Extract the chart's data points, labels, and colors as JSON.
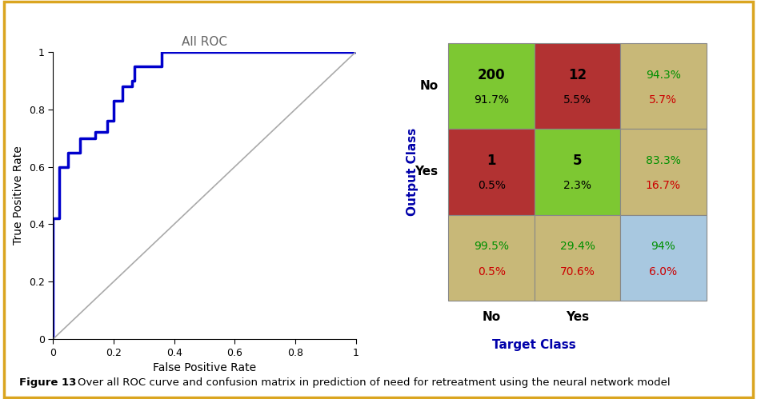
{
  "roc_points": [
    [
      0.0,
      0.0
    ],
    [
      0.0,
      0.3
    ],
    [
      0.0,
      0.42
    ],
    [
      0.02,
      0.42
    ],
    [
      0.02,
      0.5
    ],
    [
      0.02,
      0.6
    ],
    [
      0.05,
      0.6
    ],
    [
      0.05,
      0.65
    ],
    [
      0.09,
      0.65
    ],
    [
      0.09,
      0.7
    ],
    [
      0.14,
      0.7
    ],
    [
      0.14,
      0.72
    ],
    [
      0.18,
      0.72
    ],
    [
      0.18,
      0.76
    ],
    [
      0.2,
      0.76
    ],
    [
      0.2,
      0.83
    ],
    [
      0.23,
      0.83
    ],
    [
      0.23,
      0.88
    ],
    [
      0.26,
      0.88
    ],
    [
      0.26,
      0.9
    ],
    [
      0.27,
      0.9
    ],
    [
      0.27,
      0.95
    ],
    [
      0.36,
      0.95
    ],
    [
      0.36,
      1.0
    ],
    [
      0.5,
      1.0
    ],
    [
      1.0,
      1.0
    ]
  ],
  "roc_color": "#0000CC",
  "diagonal_color": "#AAAAAA",
  "roc_title": "All ROC",
  "xlabel": "False Positive Rate",
  "ylabel": "True Positive Rate",
  "confusion_matrix": {
    "cells": [
      {
        "row": 0,
        "col": 0,
        "bg": "#7DC832",
        "count": "200",
        "pct": "91.7%",
        "count_color": "#000000",
        "pct_color": "#000000"
      },
      {
        "row": 0,
        "col": 1,
        "bg": "#B23232",
        "count": "12",
        "pct": "5.5%",
        "count_color": "#000000",
        "pct_color": "#000000"
      },
      {
        "row": 0,
        "col": 2,
        "bg": "#C8B878",
        "pct_top": "94.3%",
        "pct_bot": "5.7%",
        "pct_top_color": "#009000",
        "pct_bot_color": "#CC0000"
      },
      {
        "row": 1,
        "col": 0,
        "bg": "#B23232",
        "count": "1",
        "pct": "0.5%",
        "count_color": "#000000",
        "pct_color": "#000000"
      },
      {
        "row": 1,
        "col": 1,
        "bg": "#7DC832",
        "count": "5",
        "pct": "2.3%",
        "count_color": "#000000",
        "pct_color": "#000000"
      },
      {
        "row": 1,
        "col": 2,
        "bg": "#C8B878",
        "pct_top": "83.3%",
        "pct_bot": "16.7%",
        "pct_top_color": "#009000",
        "pct_bot_color": "#CC0000"
      },
      {
        "row": 2,
        "col": 0,
        "bg": "#C8B878",
        "pct_top": "99.5%",
        "pct_bot": "0.5%",
        "pct_top_color": "#009000",
        "pct_bot_color": "#CC0000"
      },
      {
        "row": 2,
        "col": 1,
        "bg": "#C8B878",
        "pct_top": "29.4%",
        "pct_bot": "70.6%",
        "pct_top_color": "#009000",
        "pct_bot_color": "#CC0000"
      },
      {
        "row": 2,
        "col": 2,
        "bg": "#A8C8E0",
        "pct_top": "94%",
        "pct_bot": "6.0%",
        "pct_top_color": "#009000",
        "pct_bot_color": "#CC0000"
      }
    ],
    "row_labels": [
      "No",
      "Yes"
    ],
    "col_labels": [
      "No",
      "Yes"
    ],
    "ylabel": "Output Class",
    "xlabel": "Target Class"
  },
  "figure_caption": "Over all ROC curve and confusion matrix in prediction of need for retreatment using the neural network model",
  "figure_label": "Figure 13",
  "bg_color": "#FFFFFF",
  "border_color": "#DAA520"
}
